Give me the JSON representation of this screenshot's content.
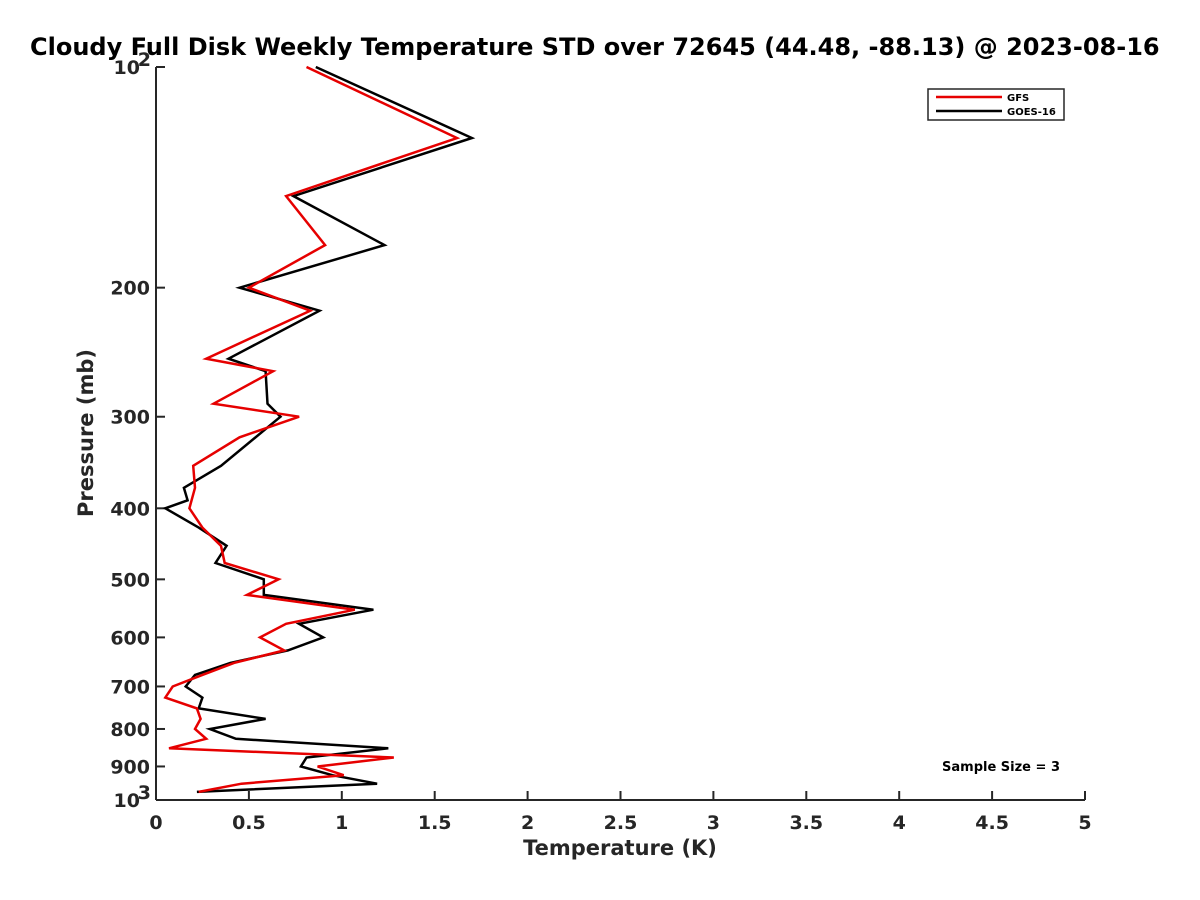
{
  "chart_data": {
    "type": "line",
    "title": "Cloudy Full Disk Weekly Temperature STD over 72645 (44.48, -88.13) @ 2023-08-16",
    "xlabel": "Temperature (K)",
    "ylabel": "Pressure (mb)",
    "xlim": [
      0,
      5
    ],
    "ylim": [
      100,
      1000
    ],
    "y_scale": "log",
    "y_reversed": true,
    "grid": false,
    "legend_position": "top-right",
    "x_ticks": [
      "0",
      "0.5",
      "1",
      "1.5",
      "2",
      "2.5",
      "3",
      "3.5",
      "4",
      "4.5",
      "5"
    ],
    "y_ticks": [
      {
        "value": 100,
        "base": "10",
        "exp": "2"
      },
      {
        "value": 200,
        "label": "200"
      },
      {
        "value": 300,
        "label": "300"
      },
      {
        "value": 400,
        "label": "400"
      },
      {
        "value": 500,
        "label": "500"
      },
      {
        "value": 600,
        "label": "600"
      },
      {
        "value": 700,
        "label": "700"
      },
      {
        "value": 800,
        "label": "800"
      },
      {
        "value": 900,
        "label": "900"
      },
      {
        "value": 1000,
        "base": "10",
        "exp": "3"
      }
    ],
    "series": [
      {
        "name": "GFS",
        "color": "#e60000",
        "points": [
          [
            0.81,
            100
          ],
          [
            1.62,
            125
          ],
          [
            0.7,
            150
          ],
          [
            0.91,
            175
          ],
          [
            0.5,
            200
          ],
          [
            0.83,
            215
          ],
          [
            0.27,
            250
          ],
          [
            0.63,
            260
          ],
          [
            0.31,
            288
          ],
          [
            0.77,
            300
          ],
          [
            0.45,
            320
          ],
          [
            0.2,
            350
          ],
          [
            0.21,
            375
          ],
          [
            0.18,
            400
          ],
          [
            0.25,
            425
          ],
          [
            0.35,
            450
          ],
          [
            0.37,
            475
          ],
          [
            0.66,
            500
          ],
          [
            0.49,
            525
          ],
          [
            1.07,
            550
          ],
          [
            0.7,
            575
          ],
          [
            0.56,
            600
          ],
          [
            0.69,
            625
          ],
          [
            0.42,
            650
          ],
          [
            0.25,
            675
          ],
          [
            0.09,
            700
          ],
          [
            0.05,
            725
          ],
          [
            0.22,
            750
          ],
          [
            0.24,
            775
          ],
          [
            0.21,
            800
          ],
          [
            0.27,
            825
          ],
          [
            0.07,
            850
          ],
          [
            1.28,
            875
          ],
          [
            0.87,
            900
          ],
          [
            1.01,
            925
          ],
          [
            0.46,
            950
          ],
          [
            0.23,
            975
          ]
        ]
      },
      {
        "name": "GOES-16",
        "color": "#000000",
        "points": [
          [
            0.86,
            100
          ],
          [
            1.7,
            125
          ],
          [
            0.74,
            150
          ],
          [
            1.23,
            175
          ],
          [
            0.45,
            200
          ],
          [
            0.88,
            215
          ],
          [
            0.39,
            250
          ],
          [
            0.59,
            260
          ],
          [
            0.6,
            288
          ],
          [
            0.67,
            300
          ],
          [
            0.35,
            350
          ],
          [
            0.15,
            375
          ],
          [
            0.17,
            390
          ],
          [
            0.05,
            400
          ],
          [
            0.23,
            425
          ],
          [
            0.38,
            450
          ],
          [
            0.32,
            475
          ],
          [
            0.58,
            500
          ],
          [
            0.58,
            525
          ],
          [
            1.17,
            550
          ],
          [
            0.77,
            575
          ],
          [
            0.9,
            600
          ],
          [
            0.71,
            625
          ],
          [
            0.4,
            650
          ],
          [
            0.21,
            675
          ],
          [
            0.16,
            700
          ],
          [
            0.25,
            725
          ],
          [
            0.23,
            750
          ],
          [
            0.59,
            775
          ],
          [
            0.29,
            800
          ],
          [
            0.43,
            825
          ],
          [
            1.25,
            850
          ],
          [
            0.81,
            875
          ],
          [
            0.78,
            900
          ],
          [
            0.95,
            925
          ],
          [
            1.19,
            950
          ],
          [
            0.22,
            975
          ]
        ]
      }
    ],
    "annotation": "Sample Size = 3"
  }
}
